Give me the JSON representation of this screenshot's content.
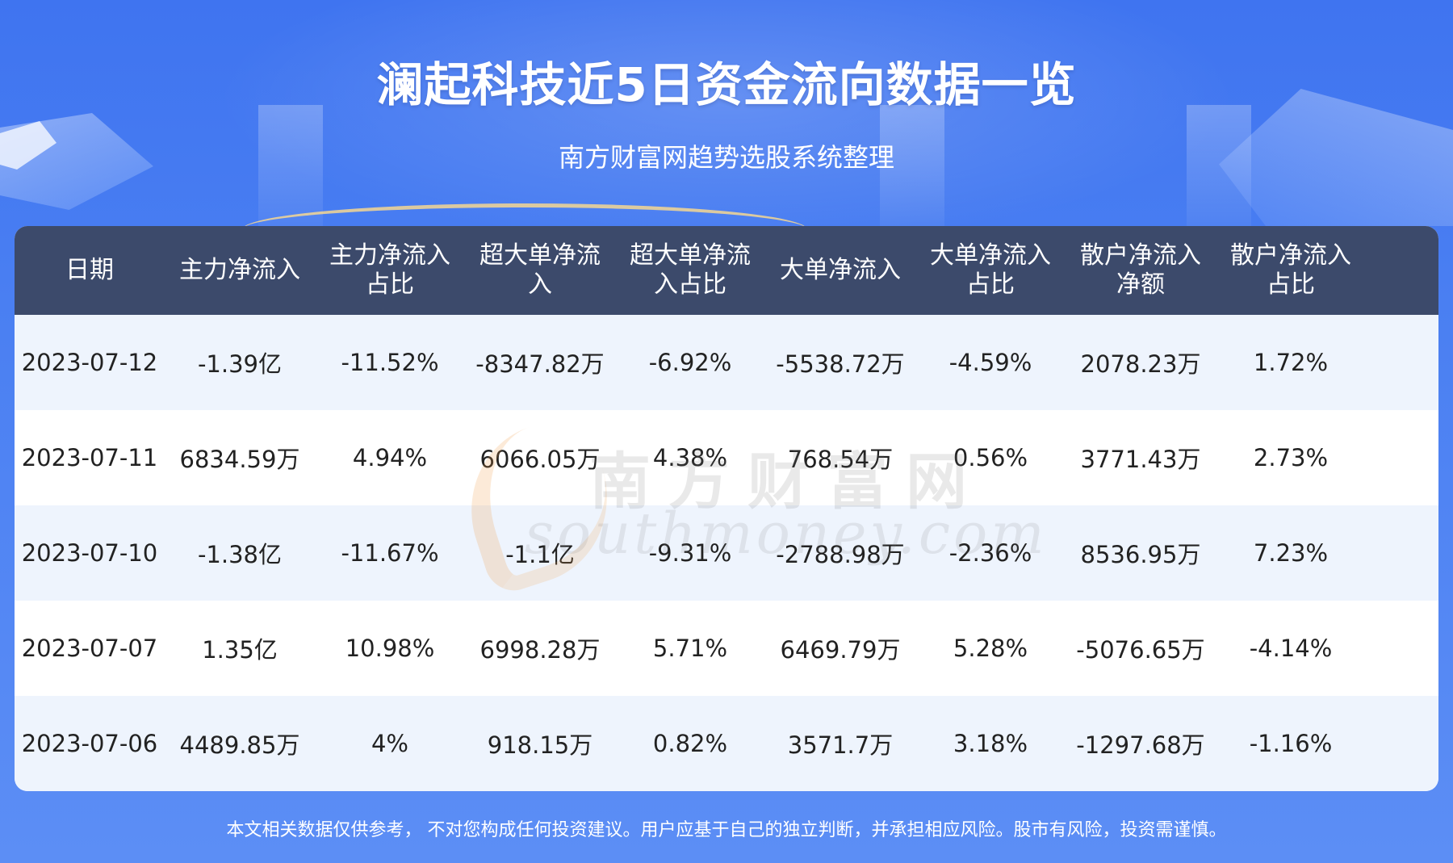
{
  "title": "澜起科技近5日资金流向数据一览",
  "subtitle": "南方财富网趋势选股系统整理",
  "headers": [
    "日期",
    "主力净流入",
    "主力净流入占比",
    "超大单净流入",
    "超大单净流入占比",
    "大单净流入",
    "大单净流入占比",
    "散户净流入净额",
    "散户净流入占比"
  ],
  "rows": [
    [
      "2023-07-12",
      "-1.39亿",
      "-11.52%",
      "-8347.82万",
      "-6.92%",
      "-5538.72万",
      "-4.59%",
      "2078.23万",
      "1.72%"
    ],
    [
      "2023-07-11",
      "6834.59万",
      "4.94%",
      "6066.05万",
      "4.38%",
      "768.54万",
      "0.56%",
      "3771.43万",
      "2.73%"
    ],
    [
      "2023-07-10",
      "-1.38亿",
      "-11.67%",
      "-1.1亿",
      "-9.31%",
      "-2788.98万",
      "-2.36%",
      "8536.95万",
      "7.23%"
    ],
    [
      "2023-07-07",
      "1.35亿",
      "10.98%",
      "6998.28万",
      "5.71%",
      "6469.79万",
      "5.28%",
      "-5076.65万",
      "-4.14%"
    ],
    [
      "2023-07-06",
      "4489.85万",
      "4%",
      "918.15万",
      "0.82%",
      "3571.7万",
      "3.18%",
      "-1297.68万",
      "-1.16%"
    ]
  ],
  "watermark": {
    "cn": "南方财富网",
    "en": "southmoney.com"
  },
  "disclaimer": "本文相关数据仅供参考， 不对您构成任何投资建议。用户应基于自己的独立判断，并承担相应风险。股市有风险，投资需谨慎。",
  "colors": {
    "background": "#4a7ff2",
    "header": "#3c4a6b",
    "row_alt": "#eef4fd",
    "row_plain": "#ffffff"
  }
}
